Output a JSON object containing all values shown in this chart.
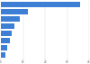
{
  "values": [
    35.8,
    12.1,
    8.5,
    6.2,
    4.8,
    3.9,
    2.8,
    1.9
  ],
  "bar_color": "#3d7fd4",
  "background_color": "#ffffff",
  "grid_color": "#d9d9d9",
  "xlim": [
    0,
    40
  ],
  "xticks": [
    0,
    10,
    20,
    30,
    40
  ],
  "figsize": [
    1.0,
    0.71
  ],
  "dpi": 100
}
